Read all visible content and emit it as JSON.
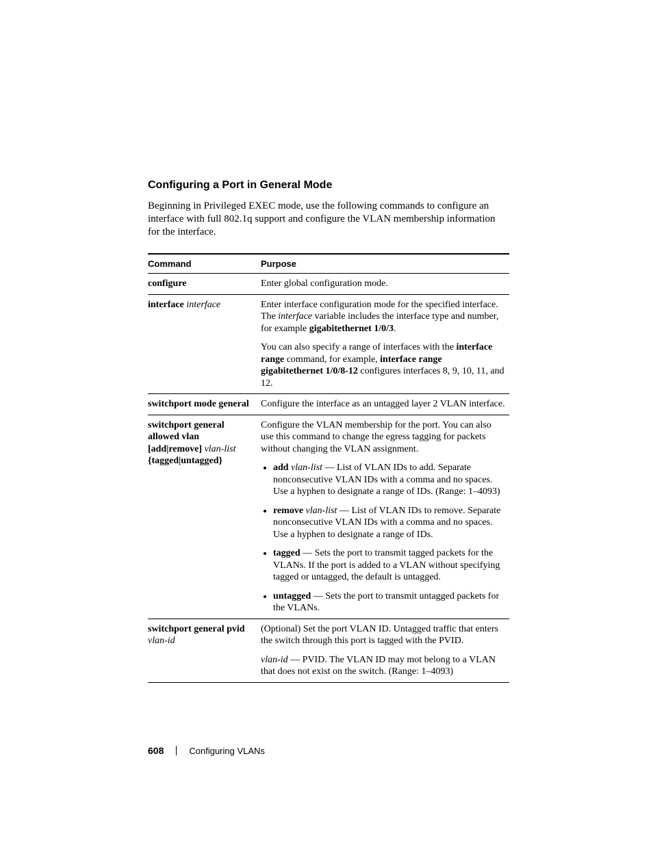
{
  "heading": "Configuring a Port in General Mode",
  "intro": "Beginning in Privileged EXEC mode, use the following commands to configure an interface with full 802.1q support and configure the VLAN membership information for the interface.",
  "table": {
    "headers": {
      "command": "Command",
      "purpose": "Purpose"
    },
    "rows": {
      "configure": {
        "cmd_plain": "configure",
        "purpose_plain": "Enter global configuration mode."
      },
      "interface": {
        "cmd_bold": "interface ",
        "cmd_italic": "interface",
        "p1_a": "Enter interface configuration mode for the specified interface. The ",
        "p1_italic": "interface",
        "p1_b": " variable includes the interface type and number, for example ",
        "p1_bold": "gigabitethernet 1/0/3",
        "p1_c": ".",
        "p2_a": "You can also specify a range of interfaces with the ",
        "p2_bold1": "interface range",
        "p2_b": " command, for example, ",
        "p2_bold2": "interface range gigabitethernet 1/0/8-12",
        "p2_c": " configures interfaces 8, 9, 10, 11, and 12."
      },
      "mode_general": {
        "cmd_bold": "switchport mode general",
        "purpose_plain": "Configure the interface as an untagged layer 2 VLAN interface."
      },
      "general_allowed": {
        "cmd_l1": "switchport general allowed vlan",
        "cmd_l2_bold_a": "[",
        "cmd_l2_bold_b": "add",
        "cmd_l2_bold_c": "|",
        "cmd_l2_bold_d": "remove",
        "cmd_l2_bold_e": "] ",
        "cmd_l2_italic": "vlan-list",
        "cmd_l3": "{tagged|untagged}",
        "p1": "Configure the VLAN membership for the port. You can also use this command to change the egress tagging for packets without changing the VLAN assignment.",
        "bullets": {
          "add": {
            "b": "add ",
            "i": "vlan-list",
            "rest": " — List of VLAN IDs to add. Separate nonconsecutive VLAN IDs with a comma and no spaces. Use a hyphen to designate a range of IDs. (Range: 1–4093)"
          },
          "remove": {
            "b": "remove ",
            "i": "vlan-list",
            "rest": " — List of VLAN IDs to remove. Separate nonconsecutive VLAN IDs with a comma and no spaces. Use a hyphen to designate a range of IDs."
          },
          "tagged": {
            "b": "tagged",
            "rest": " — Sets the port to transmit tagged packets for the VLANs. If the port is added to a VLAN without specifying tagged or untagged, the default is untagged."
          },
          "untagged": {
            "b": "untagged",
            "rest": " — Sets the port to transmit untagged packets for the VLANs."
          }
        }
      },
      "general_pvid": {
        "cmd_bold": "switchport general pvid",
        "cmd_italic": "vlan-id",
        "p1": "(Optional) Set the port VLAN ID. Untagged traffic that enters the switch through this port is tagged with the PVID.",
        "p2_italic": "vlan-id",
        "p2_rest": " — PVID. The VLAN ID may mot belong to a VLAN that does not exist on the switch. (Range: 1–4093)"
      }
    }
  },
  "footer": {
    "page": "608",
    "section": "Configuring VLANs"
  },
  "colors": {
    "text": "#000000",
    "background": "#ffffff",
    "rule": "#000000"
  },
  "fonts": {
    "body": "Georgia, serif",
    "sans": "Arial, Helvetica, sans-serif",
    "body_size_pt": 11,
    "heading_size_pt": 12
  }
}
